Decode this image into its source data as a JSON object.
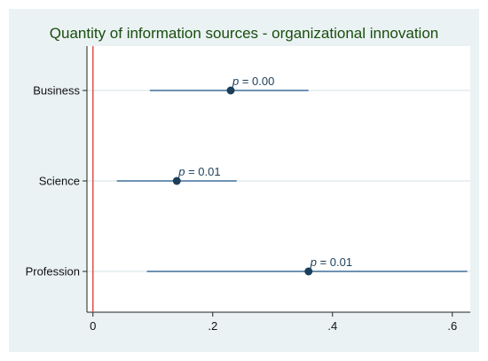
{
  "chart_data": {
    "type": "scatter",
    "title": "Quantity of information sources - organizational innovation",
    "xlabel": "",
    "ylabel": "",
    "xlim": [
      -0.01,
      0.63
    ],
    "x_ticks": [
      0,
      0.2,
      0.4,
      0.6
    ],
    "x_tick_labels": [
      "0",
      ".2",
      ".4",
      ".6"
    ],
    "reference_line": 0,
    "grid": true,
    "categories": [
      "Business",
      "Science",
      "Profession"
    ],
    "estimates": [
      {
        "label": "Business",
        "value": 0.23,
        "ci_low": 0.095,
        "ci_high": 0.36,
        "annotation": "p = 0.00"
      },
      {
        "label": "Science",
        "value": 0.14,
        "ci_low": 0.04,
        "ci_high": 0.24,
        "annotation": "p = 0.01"
      },
      {
        "label": "Profession",
        "value": 0.36,
        "ci_low": 0.09,
        "ci_high": 0.625,
        "annotation": "p = 0.01"
      }
    ],
    "colors": {
      "point": "#1c3e5a",
      "ci_line": "#3f6f99",
      "reference_line": "#d9534f",
      "grid": "#d3e0e6",
      "plot_bg": "#ffffff",
      "outer_bg": "#eaf2f3",
      "title": "#1a4d0f"
    }
  }
}
